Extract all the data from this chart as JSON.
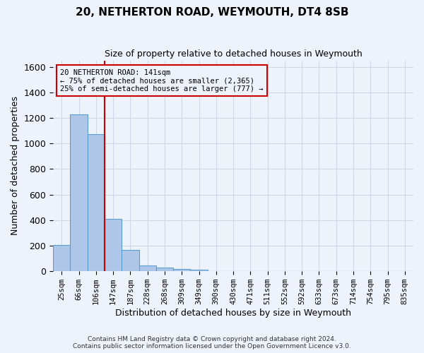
{
  "title": "20, NETHERTON ROAD, WEYMOUTH, DT4 8SB",
  "subtitle": "Size of property relative to detached houses in Weymouth",
  "xlabel": "Distribution of detached houses by size in Weymouth",
  "ylabel": "Number of detached properties",
  "footer_line1": "Contains HM Land Registry data © Crown copyright and database right 2024.",
  "footer_line2": "Contains public sector information licensed under the Open Government Licence v3.0.",
  "bin_labels": [
    "25sqm",
    "66sqm",
    "106sqm",
    "147sqm",
    "187sqm",
    "228sqm",
    "268sqm",
    "309sqm",
    "349sqm",
    "390sqm",
    "430sqm",
    "471sqm",
    "511sqm",
    "552sqm",
    "592sqm",
    "633sqm",
    "673sqm",
    "714sqm",
    "754sqm",
    "795sqm",
    "835sqm"
  ],
  "bar_values": [
    205,
    1225,
    1075,
    410,
    165,
    47,
    28,
    18,
    12,
    0,
    0,
    0,
    0,
    0,
    0,
    0,
    0,
    0,
    0,
    0,
    0
  ],
  "bar_color": "#aec6e8",
  "bar_edge_color": "#5a9fd4",
  "bar_edge_width": 0.8,
  "grid_color": "#d0d8e8",
  "bg_color": "#eef2fa",
  "red_line_x": 3.0,
  "ylim": [
    0,
    1650
  ],
  "yticks": [
    0,
    200,
    400,
    600,
    800,
    1000,
    1200,
    1400,
    1600
  ],
  "annotation_text": "20 NETHERTON ROAD: 141sqm\n← 75% of detached houses are smaller (2,365)\n25% of semi-detached houses are larger (777) →",
  "annotation_box_color": "#cc0000",
  "property_line_color": "#cc0000",
  "figsize": [
    6.0,
    5.0
  ],
  "dpi": 100
}
